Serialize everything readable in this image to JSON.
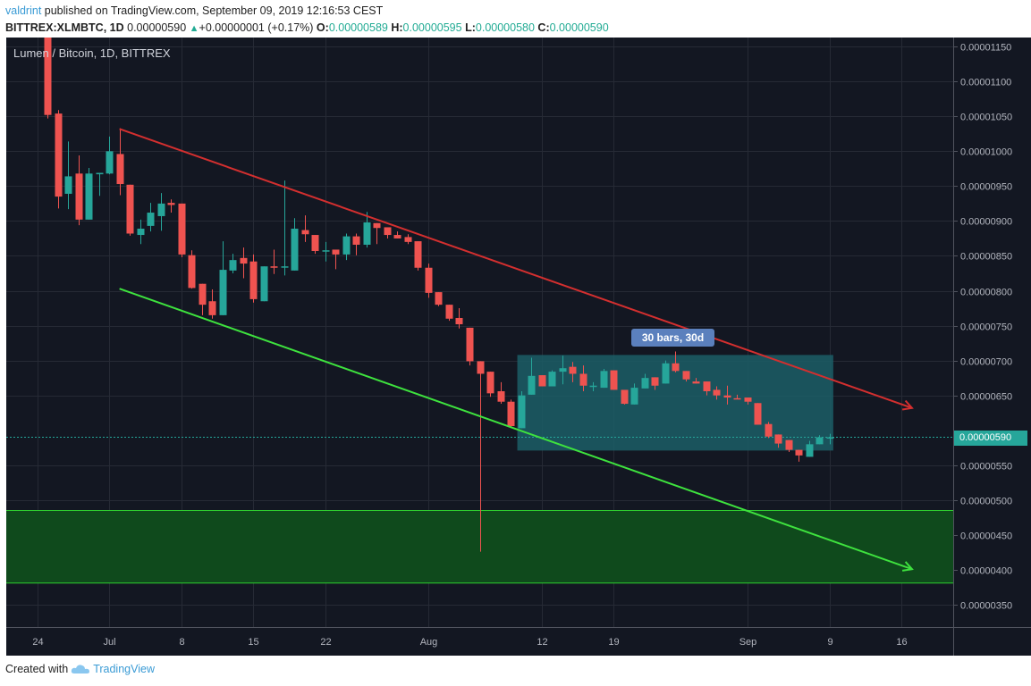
{
  "header": {
    "author": "valdrint",
    "published": "published on TradingView.com, September 09, 2019 12:16:53 CEST",
    "symbol": "BITTREX:XLMBTC, 1D",
    "last": "0.00000590",
    "change_icon": "triangle-up-icon",
    "change": "+0.00000001 (+0.17%)",
    "o_label": "O:",
    "o": "0.00000589",
    "h_label": "H:",
    "h": "0.00000595",
    "l_label": "L:",
    "l": "0.00000580",
    "c_label": "C:",
    "c": "0.00000590"
  },
  "footer": {
    "created_with": "Created with",
    "brand": "TradingView",
    "logo_icon": "tradingview-cloud-icon"
  },
  "colors": {
    "background": "#131722",
    "grid": "#262a35",
    "up": "#26a69a",
    "down": "#ef5350",
    "resistance": "#d32f2f",
    "support": "#3ee23e",
    "zone_fill": "#0f4a1c",
    "range_fill": "#1c5e66",
    "range_label": "#5b80bd"
  },
  "chart_data": {
    "type": "candlestick",
    "title": "Lumen / Bitcoin, 1D, BITTREX",
    "ylim": [
      3.18e-06,
      1.163e-05
    ],
    "xlim": [
      "2019-06-21",
      "2019-09-21"
    ],
    "grid": true,
    "yticks": [
      "0.00001150",
      "0.00001100",
      "0.00001050",
      "0.00001000",
      "0.00000950",
      "0.00000900",
      "0.00000850",
      "0.00000800",
      "0.00000750",
      "0.00000700",
      "0.00000650",
      "0.00000550",
      "0.00000500",
      "0.00000450",
      "0.00000400",
      "0.00000350"
    ],
    "xticks": [
      {
        "label": "24",
        "date": "2019-06-24"
      },
      {
        "label": "Jul",
        "date": "2019-07-01"
      },
      {
        "label": "8",
        "date": "2019-07-08"
      },
      {
        "label": "15",
        "date": "2019-07-15"
      },
      {
        "label": "22",
        "date": "2019-07-22"
      },
      {
        "label": "Aug",
        "date": "2019-08-01"
      },
      {
        "label": "12",
        "date": "2019-08-12"
      },
      {
        "label": "19",
        "date": "2019-08-19"
      },
      {
        "label": "Sep",
        "date": "2019-09-01"
      },
      {
        "label": "9",
        "date": "2019-09-09"
      },
      {
        "label": "16",
        "date": "2019-09-16"
      }
    ],
    "last_price": "0.00000590",
    "candles_columns": [
      "date",
      "open",
      "high",
      "low",
      "close"
    ],
    "candles": [
      [
        "2019-06-25",
        1.17e-05,
        1.175e-05,
        1.047e-05,
        1.052e-05
      ],
      [
        "2019-06-26",
        1.054e-05,
        1.059e-05,
        9.18e-06,
        9.35e-06
      ],
      [
        "2019-06-27",
        9.39e-06,
        1.014e-05,
        9.17e-06,
        9.64e-06
      ],
      [
        "2019-06-28",
        9.68e-06,
        9.94e-06,
        8.94e-06,
        9.02e-06
      ],
      [
        "2019-06-29",
        9.02e-06,
        9.76e-06,
        9.02e-06,
        9.68e-06
      ],
      [
        "2019-06-30",
        9.67e-06,
        9.69e-06,
        9.36e-06,
        9.69e-06
      ],
      [
        "2019-07-01",
        9.68e-06,
        1.021e-05,
        9.67e-06,
        1e-05
      ],
      [
        "2019-07-02",
        9.96e-06,
        1.033e-05,
        9.37e-06,
        9.53e-06
      ],
      [
        "2019-07-03",
        9.52e-06,
        9.52e-06,
        8.79e-06,
        8.82e-06
      ],
      [
        "2019-07-04",
        8.8e-06,
        9.02e-06,
        8.67e-06,
        8.89e-06
      ],
      [
        "2019-07-05",
        8.93e-06,
        9.26e-06,
        8.85e-06,
        9.12e-06
      ],
      [
        "2019-07-06",
        9.07e-06,
        9.4e-06,
        8.86e-06,
        9.25e-06
      ],
      [
        "2019-07-07",
        9.26e-06,
        9.31e-06,
        9.12e-06,
        9.23e-06
      ],
      [
        "2019-07-08",
        9.25e-06,
        9.25e-06,
        8.48e-06,
        8.52e-06
      ],
      [
        "2019-07-09",
        8.51e-06,
        8.58e-06,
        8.03e-06,
        8.04e-06
      ],
      [
        "2019-07-10",
        8.1e-06,
        8.1e-06,
        7.65e-06,
        7.8e-06
      ],
      [
        "2019-07-11",
        7.85e-06,
        8.02e-06,
        7.6e-06,
        7.65e-06
      ],
      [
        "2019-07-12",
        7.65e-06,
        8.71e-06,
        7.65e-06,
        8.3e-06
      ],
      [
        "2019-07-13",
        8.29e-06,
        8.53e-06,
        8.25e-06,
        8.44e-06
      ],
      [
        "2019-07-14",
        8.47e-06,
        8.62e-06,
        8.18e-06,
        8.39e-06
      ],
      [
        "2019-07-15",
        8.42e-06,
        8.52e-06,
        7.83e-06,
        7.88e-06
      ],
      [
        "2019-07-16",
        7.85e-06,
        8.35e-06,
        7.85e-06,
        8.35e-06
      ],
      [
        "2019-07-17",
        8.35e-06,
        8.59e-06,
        8.24e-06,
        8.33e-06
      ],
      [
        "2019-07-18",
        8.34e-06,
        9.58e-06,
        8.22e-06,
        8.35e-06
      ],
      [
        "2019-07-19",
        8.29e-06,
        9.04e-06,
        8.29e-06,
        8.89e-06
      ],
      [
        "2019-07-20",
        8.87e-06,
        9.08e-06,
        8.7e-06,
        8.81e-06
      ],
      [
        "2019-07-21",
        8.8e-06,
        8.8e-06,
        8.53e-06,
        8.57e-06
      ],
      [
        "2019-07-22",
        8.57e-06,
        8.7e-06,
        8.42e-06,
        8.58e-06
      ],
      [
        "2019-07-23",
        8.59e-06,
        8.59e-06,
        8.31e-06,
        8.52e-06
      ],
      [
        "2019-07-24",
        8.52e-06,
        8.82e-06,
        8.44e-06,
        8.78e-06
      ],
      [
        "2019-07-25",
        8.78e-06,
        8.82e-06,
        8.51e-06,
        8.66e-06
      ],
      [
        "2019-07-26",
        8.66e-06,
        9.13e-06,
        8.62e-06,
        8.98e-06
      ],
      [
        "2019-07-27",
        8.97e-06,
        8.97e-06,
        8.67e-06,
        8.9e-06
      ],
      [
        "2019-07-28",
        8.91e-06,
        8.91e-06,
        8.75e-06,
        8.8e-06
      ],
      [
        "2019-07-29",
        8.8e-06,
        8.85e-06,
        8.75e-06,
        8.75e-06
      ],
      [
        "2019-07-30",
        8.77e-06,
        8.81e-06,
        8.67e-06,
        8.7e-06
      ],
      [
        "2019-07-31",
        8.71e-06,
        8.71e-06,
        8.29e-06,
        8.33e-06
      ],
      [
        "2019-08-01",
        8.33e-06,
        8.39e-06,
        7.9e-06,
        7.97e-06
      ],
      [
        "2019-08-02",
        7.98e-06,
        7.98e-06,
        7.78e-06,
        7.8e-06
      ],
      [
        "2019-08-03",
        7.8e-06,
        7.8e-06,
        7.57e-06,
        7.6e-06
      ],
      [
        "2019-08-04",
        7.61e-06,
        7.75e-06,
        7.46e-06,
        7.52e-06
      ],
      [
        "2019-08-05",
        7.47e-06,
        7.47e-06,
        6.93e-06,
        6.99e-06
      ],
      [
        "2019-08-06",
        6.99e-06,
        6.99e-06,
        4.26e-06,
        6.81e-06
      ],
      [
        "2019-08-07",
        6.84e-06,
        6.84e-06,
        6.48e-06,
        6.53e-06
      ],
      [
        "2019-08-08",
        6.56e-06,
        6.69e-06,
        6.38e-06,
        6.41e-06
      ],
      [
        "2019-08-09",
        6.41e-06,
        6.44e-06,
        6.05e-06,
        6.06e-06
      ],
      [
        "2019-08-10",
        6.03e-06,
        6.56e-06,
        6.03e-06,
        6.5e-06
      ],
      [
        "2019-08-11",
        6.51e-06,
        7.04e-06,
        6.51e-06,
        6.78e-06
      ],
      [
        "2019-08-12",
        6.79e-06,
        6.79e-06,
        6.63e-06,
        6.63e-06
      ],
      [
        "2019-08-13",
        6.63e-06,
        6.86e-06,
        6.63e-06,
        6.84e-06
      ],
      [
        "2019-08-14",
        6.84e-06,
        7.07e-06,
        6.66e-06,
        6.89e-06
      ],
      [
        "2019-08-15",
        6.91e-06,
        6.98e-06,
        6.69e-06,
        6.81e-06
      ],
      [
        "2019-08-16",
        6.81e-06,
        6.93e-06,
        6.56e-06,
        6.64e-06
      ],
      [
        "2019-08-17",
        6.63e-06,
        6.69e-06,
        6.56e-06,
        6.64e-06
      ],
      [
        "2019-08-18",
        6.61e-06,
        6.88e-06,
        6.61e-06,
        6.85e-06
      ],
      [
        "2019-08-19",
        6.86e-06,
        6.86e-06,
        6.58e-06,
        6.58e-06
      ],
      [
        "2019-08-20",
        6.58e-06,
        6.58e-06,
        6.37e-06,
        6.38e-06
      ],
      [
        "2019-08-21",
        6.37e-06,
        6.67e-06,
        6.37e-06,
        6.61e-06
      ],
      [
        "2019-08-22",
        6.6e-06,
        6.81e-06,
        6.6e-06,
        6.75e-06
      ],
      [
        "2019-08-23",
        6.76e-06,
        6.76e-06,
        6.58e-06,
        6.64e-06
      ],
      [
        "2019-08-24",
        6.67e-06,
        7e-06,
        6.67e-06,
        6.96e-06
      ],
      [
        "2019-08-25",
        6.96e-06,
        7.13e-06,
        6.83e-06,
        6.85e-06
      ],
      [
        "2019-08-26",
        6.85e-06,
        6.85e-06,
        6.7e-06,
        6.73e-06
      ],
      [
        "2019-08-27",
        6.7e-06,
        6.75e-06,
        6.67e-06,
        6.67e-06
      ],
      [
        "2019-08-28",
        6.7e-06,
        6.7e-06,
        6.5e-06,
        6.56e-06
      ],
      [
        "2019-08-29",
        6.58e-06,
        6.63e-06,
        6.44e-06,
        6.5e-06
      ],
      [
        "2019-08-30",
        6.5e-06,
        6.64e-06,
        6.37e-06,
        6.47e-06
      ],
      [
        "2019-08-31",
        6.46e-06,
        6.51e-06,
        6.45e-06,
        6.45e-06
      ],
      [
        "2019-09-01",
        6.47e-06,
        6.47e-06,
        6.37e-06,
        6.41e-06
      ],
      [
        "2019-09-02",
        6.39e-06,
        6.39e-06,
        6.08e-06,
        6.08e-06
      ],
      [
        "2019-09-03",
        6.09e-06,
        6.12e-06,
        5.89e-06,
        5.91e-06
      ],
      [
        "2019-09-04",
        5.94e-06,
        5.94e-06,
        5.75e-06,
        5.81e-06
      ],
      [
        "2019-09-05",
        5.86e-06,
        5.86e-06,
        5.69e-06,
        5.72e-06
      ],
      [
        "2019-09-06",
        5.72e-06,
        5.72e-06,
        5.55e-06,
        5.64e-06
      ],
      [
        "2019-09-07",
        5.62e-06,
        5.85e-06,
        5.62e-06,
        5.8e-06
      ],
      [
        "2019-09-08",
        5.8e-06,
        5.93e-06,
        5.8e-06,
        5.9e-06
      ],
      [
        "2019-09-09",
        5.89e-06,
        5.95e-06,
        5.8e-06,
        5.9e-06
      ]
    ],
    "drawings": {
      "resistance_line": {
        "from": [
          "2019-07-02",
          1.032e-05
        ],
        "to": [
          "2019-09-17",
          6.32e-06
        ],
        "arrow": true
      },
      "support_line": {
        "from": [
          "2019-07-02",
          8.03e-06
        ],
        "to": [
          "2019-09-17",
          4.01e-06
        ],
        "arrow": true
      },
      "support_zone": {
        "top": 4.85e-06,
        "bottom": 3.81e-06
      },
      "date_range": {
        "from": "2019-08-10",
        "to": "2019-09-09",
        "top": 7.08e-06,
        "bottom": 5.71e-06,
        "label": "30 bars, 30d"
      }
    }
  }
}
